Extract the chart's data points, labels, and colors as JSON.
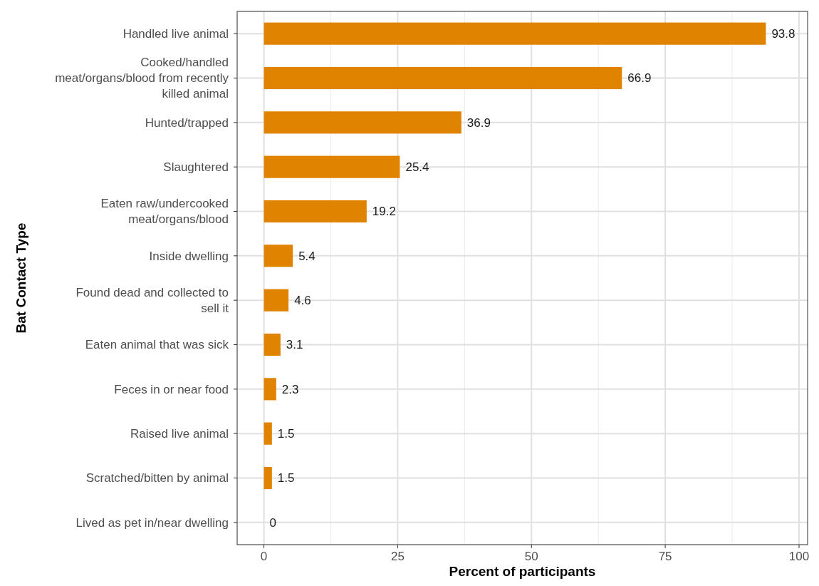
{
  "chart_data": {
    "type": "bar",
    "orientation": "horizontal",
    "xlabel": "Percent of participants",
    "ylabel": "Bat Contact Type",
    "categories": [
      "Handled live animal",
      "Cooked/handled meat/organs/blood from recently killed animal",
      "Hunted/trapped",
      "Slaughtered",
      "Eaten raw/undercooked meat/organs/blood",
      "Inside dwelling",
      "Found dead and collected to sell it",
      "Eaten animal that was sick",
      "Feces in or near food",
      "Raised live animal",
      "Scratched/bitten by animal",
      "Lived as pet in/near dwelling"
    ],
    "values": [
      93.8,
      66.9,
      36.9,
      25.4,
      19.2,
      5.4,
      4.6,
      3.1,
      2.3,
      1.5,
      1.5,
      0
    ],
    "color": "#e08300",
    "xlim": [
      -5,
      101.6
    ],
    "xticks": [
      0,
      25,
      50,
      75,
      100
    ],
    "grid": true,
    "data_labels": true
  }
}
